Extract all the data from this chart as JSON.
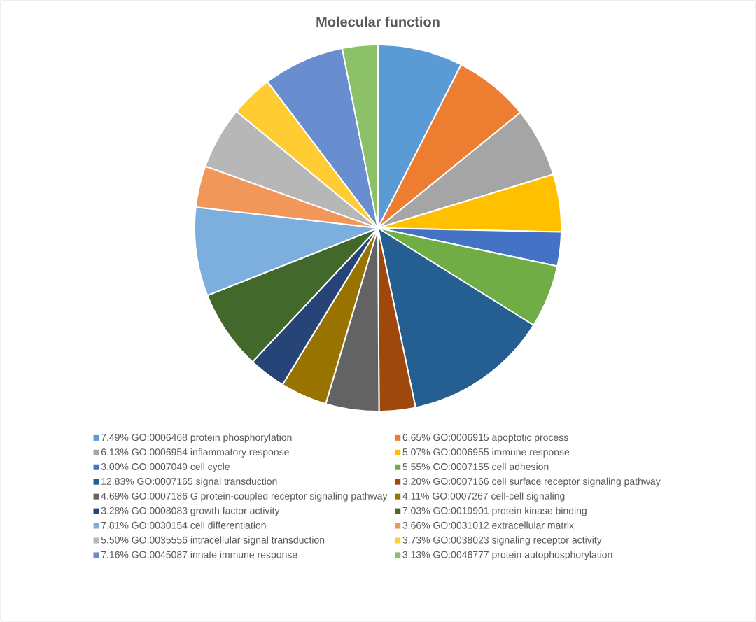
{
  "chart_data": {
    "type": "pie",
    "title": "Molecular function",
    "categories": [
      "7.49% GO:0006468 protein phosphorylation",
      "6.65% GO:0006915 apoptotic process",
      "6.13% GO:0006954 inflammatory response",
      "5.07% GO:0006955 immune response",
      "3.00% GO:0007049 cell cycle",
      "5.55% GO:0007155 cell adhesion",
      "12.83% GO:0007165 signal transduction",
      "3.20% GO:0007166 cell surface receptor signaling pathway",
      "4.69% GO:0007186 G protein-coupled receptor signaling pathway",
      "4.11% GO:0007267 cell-cell signaling",
      "3.28% GO:0008083 growth factor activity",
      "7.03% GO:0019901 protein kinase binding",
      "7.81% GO:0030154 cell differentiation",
      "3.66% GO:0031012 extracellular matrix",
      "5.50% GO:0035556 intracellular signal transduction",
      "3.73% GO:0038023 signaling receptor activity",
      "7.16% GO:0045087 innate immune response",
      "3.13% GO:0046777 protein autophosphorylation"
    ],
    "values": [
      7.49,
      6.65,
      6.13,
      5.07,
      3.0,
      5.55,
      12.83,
      3.2,
      4.69,
      4.11,
      3.28,
      7.03,
      7.81,
      3.66,
      5.5,
      3.73,
      7.16,
      3.13
    ],
    "colors": [
      "#5b9bd5",
      "#ed7d31",
      "#a5a5a5",
      "#ffc000",
      "#4472c4",
      "#70ad47",
      "#255e91",
      "#9e480e",
      "#636363",
      "#997300",
      "#264478",
      "#43682b",
      "#7cafdd",
      "#f1975a",
      "#b7b7b7",
      "#ffcd33",
      "#698ed0",
      "#8cc168"
    ],
    "legend": "bottom"
  }
}
